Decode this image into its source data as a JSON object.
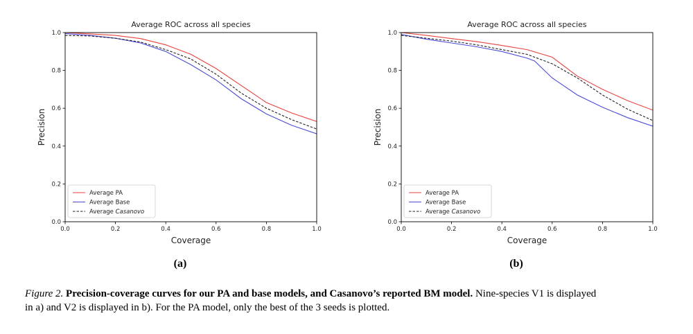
{
  "chart_data": [
    {
      "panel": "(a)",
      "type": "line",
      "title": "Average ROC across all species",
      "xlabel": "Coverage",
      "ylabel": "Precision",
      "xlim": [
        0.0,
        1.0
      ],
      "ylim": [
        0.0,
        1.0
      ],
      "xticks": [
        "0.0",
        "0.2",
        "0.4",
        "0.6",
        "0.8",
        "1.0"
      ],
      "yticks": [
        "0.0",
        "0.2",
        "0.4",
        "0.6",
        "0.8",
        "1.0"
      ],
      "grid": false,
      "legend_position": "lower-left",
      "series": [
        {
          "name": "Average PA",
          "color": "#e8423c",
          "dash": "solid",
          "x": [
            0.0,
            0.1,
            0.2,
            0.3,
            0.4,
            0.5,
            0.6,
            0.7,
            0.8,
            0.9,
            1.0
          ],
          "y": [
            1.0,
            0.993,
            0.985,
            0.968,
            0.935,
            0.885,
            0.81,
            0.72,
            0.63,
            0.575,
            0.53
          ]
        },
        {
          "name": "Average Base",
          "color": "#4a4ad8",
          "dash": "solid",
          "x": [
            0.0,
            0.1,
            0.2,
            0.3,
            0.4,
            0.5,
            0.6,
            0.7,
            0.8,
            0.9,
            1.0
          ],
          "y": [
            0.995,
            0.985,
            0.97,
            0.945,
            0.9,
            0.83,
            0.75,
            0.65,
            0.57,
            0.51,
            0.465
          ]
        },
        {
          "name": "Average Casanovo",
          "name_prefix": "Average ",
          "name_italic": "Casanovo",
          "color": "#222222",
          "dash": "dashed",
          "x": [
            0.0,
            0.1,
            0.2,
            0.3,
            0.4,
            0.5,
            0.6,
            0.7,
            0.8,
            0.9,
            1.0
          ],
          "y": [
            0.985,
            0.982,
            0.97,
            0.95,
            0.91,
            0.86,
            0.78,
            0.68,
            0.6,
            0.54,
            0.49
          ]
        }
      ]
    },
    {
      "panel": "(b)",
      "type": "line",
      "title": "Average ROC across all species",
      "xlabel": "Coverage",
      "ylabel": "Precision",
      "xlim": [
        0.0,
        1.0
      ],
      "ylim": [
        0.0,
        1.0
      ],
      "xticks": [
        "0.0",
        "0.2",
        "0.4",
        "0.6",
        "0.8",
        "1.0"
      ],
      "yticks": [
        "0.0",
        "0.2",
        "0.4",
        "0.6",
        "0.8",
        "1.0"
      ],
      "grid": false,
      "legend_position": "lower-left",
      "series": [
        {
          "name": "Average PA",
          "color": "#e8423c",
          "dash": "solid",
          "x": [
            0.0,
            0.1,
            0.2,
            0.3,
            0.4,
            0.5,
            0.6,
            0.7,
            0.8,
            0.9,
            1.0
          ],
          "y": [
            1.0,
            0.985,
            0.968,
            0.952,
            0.932,
            0.91,
            0.87,
            0.77,
            0.7,
            0.64,
            0.59
          ]
        },
        {
          "name": "Average Base",
          "color": "#4a4ad8",
          "dash": "solid",
          "x": [
            0.0,
            0.1,
            0.2,
            0.3,
            0.4,
            0.5,
            0.53,
            0.6,
            0.7,
            0.8,
            0.9,
            1.0
          ],
          "y": [
            0.99,
            0.965,
            0.945,
            0.925,
            0.9,
            0.865,
            0.85,
            0.76,
            0.67,
            0.605,
            0.55,
            0.505
          ]
        },
        {
          "name": "Average Casanovo",
          "name_prefix": "Average ",
          "name_italic": "Casanovo",
          "color": "#222222",
          "dash": "dashed",
          "x": [
            0.0,
            0.1,
            0.2,
            0.3,
            0.4,
            0.5,
            0.6,
            0.7,
            0.8,
            0.9,
            1.0
          ],
          "y": [
            0.985,
            0.97,
            0.955,
            0.935,
            0.91,
            0.885,
            0.835,
            0.76,
            0.67,
            0.595,
            0.535
          ]
        }
      ]
    }
  ],
  "subfigure_labels": [
    "(a)",
    "(b)"
  ],
  "caption": {
    "prefix": "Figure 2.",
    "bold": "Precision-coverage curves for our PA and base models, and Casanovo’s reported BM model.",
    "rest_line1": "Nine-species V1 is displayed",
    "rest_line2": "in a) and V2 is displayed in b). For the PA model, only the best of the 3 seeds is plotted."
  }
}
